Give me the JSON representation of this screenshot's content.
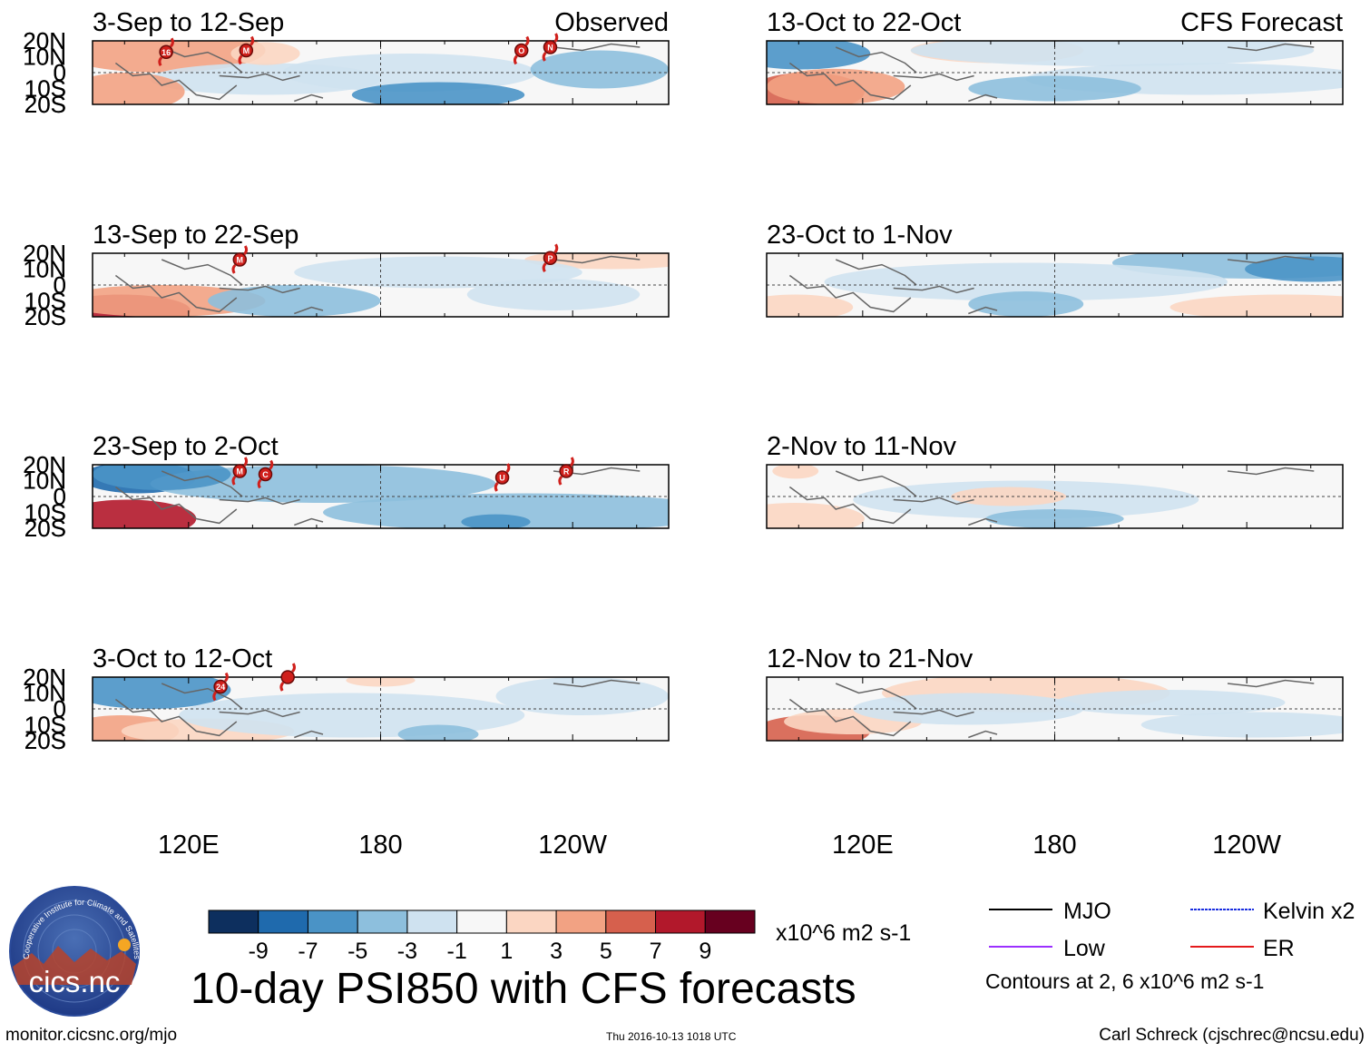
{
  "panels": [
    {
      "period": "3-Sep to 12-Sep",
      "label": "Observed"
    },
    {
      "period": "13-Sep to 22-Sep",
      "label": ""
    },
    {
      "period": "23-Sep to 2-Oct",
      "label": ""
    },
    {
      "period": "3-Oct to 12-Oct",
      "label": ""
    },
    {
      "period": "13-Oct to 22-Oct",
      "label": "CFS Forecast"
    },
    {
      "period": "23-Oct to 1-Nov",
      "label": ""
    },
    {
      "period": "2-Nov to 11-Nov",
      "label": ""
    },
    {
      "period": "12-Nov to 21-Nov",
      "label": ""
    }
  ],
  "chart_data": {
    "type": "heatmap",
    "title": "10-day PSI850 with CFS forecasts",
    "x_ticks": [
      "120E",
      "180",
      "120W"
    ],
    "x_tick_lons": [
      120,
      180,
      240
    ],
    "x_range_lon": [
      90,
      270
    ],
    "y_ticks": [
      "20N",
      "10N",
      "0",
      "10S",
      "20S"
    ],
    "y_tick_lats": [
      20,
      10,
      0,
      -10,
      -20
    ],
    "y_range_lat": [
      -20,
      20
    ],
    "colorbar": {
      "tick_labels": [
        "-9",
        "-7",
        "-5",
        "-3",
        "-1",
        "1",
        "3",
        "5",
        "7",
        "9"
      ],
      "colors": [
        "#0d2f5e",
        "#1f6aad",
        "#4a93c6",
        "#8dbfdd",
        "#cfe2f0",
        "#f7f7f7",
        "#fbd6c2",
        "#f2a283",
        "#d6604d",
        "#b2182b",
        "#67001f"
      ],
      "units": "x10^6 m2 s-1"
    },
    "legend": [
      {
        "name": "MJO",
        "color": "#000000"
      },
      {
        "name": "Kelvin x2",
        "color": "#1a2ee0"
      },
      {
        "name": "Low",
        "color": "#9b30ff"
      },
      {
        "name": "ER",
        "color": "#e41a1c"
      }
    ],
    "contour_note": "Contours at 2, 6 x10^6 m2 s-1",
    "storms": [
      {
        "panel": 0,
        "id": "16",
        "lon": 113,
        "lat": 13
      },
      {
        "panel": 0,
        "id": "M",
        "lon": 138,
        "lat": 14
      },
      {
        "panel": 0,
        "id": "O",
        "lon": 224,
        "lat": 14
      },
      {
        "panel": 0,
        "id": "N",
        "lon": 233,
        "lat": 16
      },
      {
        "panel": 1,
        "id": "M",
        "lon": 136,
        "lat": 16
      },
      {
        "panel": 1,
        "id": "P",
        "lon": 233,
        "lat": 17
      },
      {
        "panel": 2,
        "id": "M",
        "lon": 136,
        "lat": 16
      },
      {
        "panel": 2,
        "id": "C",
        "lon": 144,
        "lat": 14
      },
      {
        "panel": 2,
        "id": "U",
        "lon": 218,
        "lat": 12
      },
      {
        "panel": 2,
        "id": "R",
        "lon": 238,
        "lat": 16
      },
      {
        "panel": 3,
        "id": "24",
        "lon": 130,
        "lat": 14
      },
      {
        "panel": 3,
        "id": "",
        "lon": 151,
        "lat": 20
      }
    ]
  },
  "logo": {
    "ring_text": "Cooperative Institute for Climate and Satellites",
    "name": "cics.nc"
  },
  "footer": {
    "url": "monitor.cicsnc.org/mjo",
    "timestamp": "Thu 2016-10-13 1018 UTC",
    "credit": "Carl Schreck (cjschrec@ncsu.edu)"
  }
}
